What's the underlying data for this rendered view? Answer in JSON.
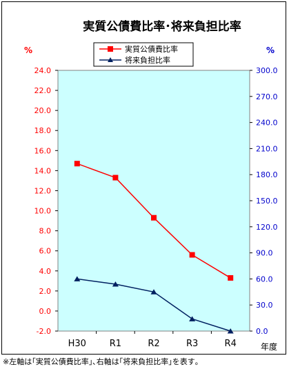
{
  "chart_data": {
    "type": "line",
    "title": "実質公債費比率･将来負担比率",
    "categories": [
      "H30",
      "R1",
      "R2",
      "R3",
      "R4"
    ],
    "xlabel": "年度",
    "ylabel_left": "%",
    "ylabel_right": "%",
    "y_left": {
      "min": -2.0,
      "max": 24.0,
      "ticks": [
        "24.0",
        "22.0",
        "20.0",
        "18.0",
        "16.0",
        "14.0",
        "12.0",
        "10.0",
        "8.0",
        "6.0",
        "4.0",
        "2.0",
        "0.0",
        "-2.0"
      ]
    },
    "y_right": {
      "min": 0.0,
      "max": 300.0,
      "ticks": [
        "300.0",
        "270.0",
        "240.0",
        "210.0",
        "180.0",
        "150.0",
        "120.0",
        "90.0",
        "60.0",
        "30.0",
        "0.0"
      ]
    },
    "series": [
      {
        "name": "実質公債費比率",
        "axis": "left",
        "color": "#ff0000",
        "marker": "square",
        "values": [
          14.7,
          13.3,
          9.3,
          5.6,
          3.3
        ]
      },
      {
        "name": "将来負担比率",
        "axis": "right",
        "color": "#002060",
        "marker": "triangle",
        "values": [
          60.0,
          54.0,
          45.0,
          14.0,
          0.0
        ]
      }
    ],
    "plot_background": "#ccffff",
    "legend_position": "top-center",
    "grid": false
  },
  "note": "※左軸は｢実質公債費比率｣､右軸は｢将来負担比率｣を表す｡"
}
